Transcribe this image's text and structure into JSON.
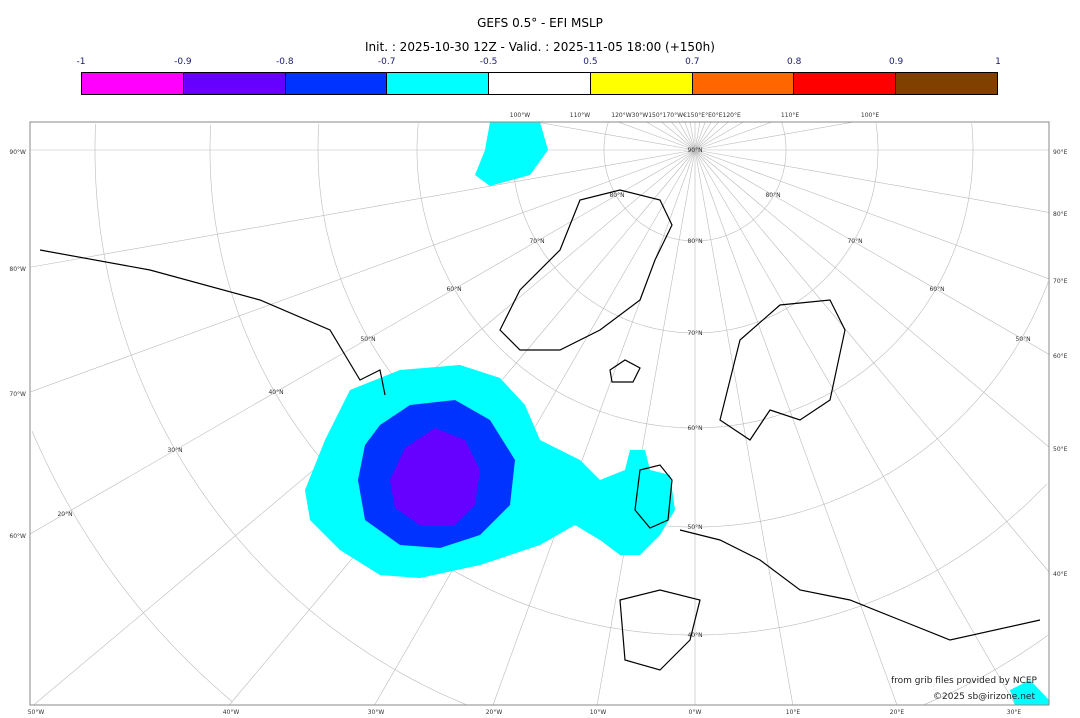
{
  "title": "GEFS 0.5° - EFI MSLP",
  "subtitle": "Init. : 2025-10-30 12Z - Valid. : 2025-11-05 18:00 (+150h)",
  "colorbar": {
    "ticks": [
      "-1",
      "-0.9",
      "-0.8",
      "-0.7",
      "-0.5",
      "0.5",
      "0.7",
      "0.8",
      "0.9",
      "1"
    ],
    "colors": [
      "#ff00ff",
      "#6600ff",
      "#0033ff",
      "#00ffff",
      "#ffffff",
      "#ffff00",
      "#ff6600",
      "#ff0000",
      "#804000"
    ]
  },
  "map": {
    "left_labels": [
      "90°W",
      "80°W",
      "70°W",
      "60°W"
    ],
    "right_labels": [
      "90°E",
      "80°E",
      "70°E",
      "60°E",
      "50°E",
      "40°E"
    ],
    "bottom_labels": [
      "50°W",
      "40°W",
      "30°W",
      "20°W",
      "10°W",
      "0°W",
      "10°E",
      "20°E",
      "30°E"
    ],
    "top_labels": [
      "100°W",
      "110°W",
      "120°W30°W150°170°W€150°E°E0°E120°E",
      "110°E",
      "100°E"
    ],
    "lat_labels": [
      "90°N",
      "80°N",
      "80°N",
      "80°N",
      "70°N",
      "70°N",
      "70°N",
      "60°N",
      "60°N",
      "60°N",
      "50°N",
      "50°N",
      "50°N",
      "40°N",
      "40°N",
      "30°N",
      "20°N"
    ]
  },
  "credits": {
    "line1": "from grib files provided by NCEP",
    "line2": "©2025 sb@irizone.net"
  }
}
